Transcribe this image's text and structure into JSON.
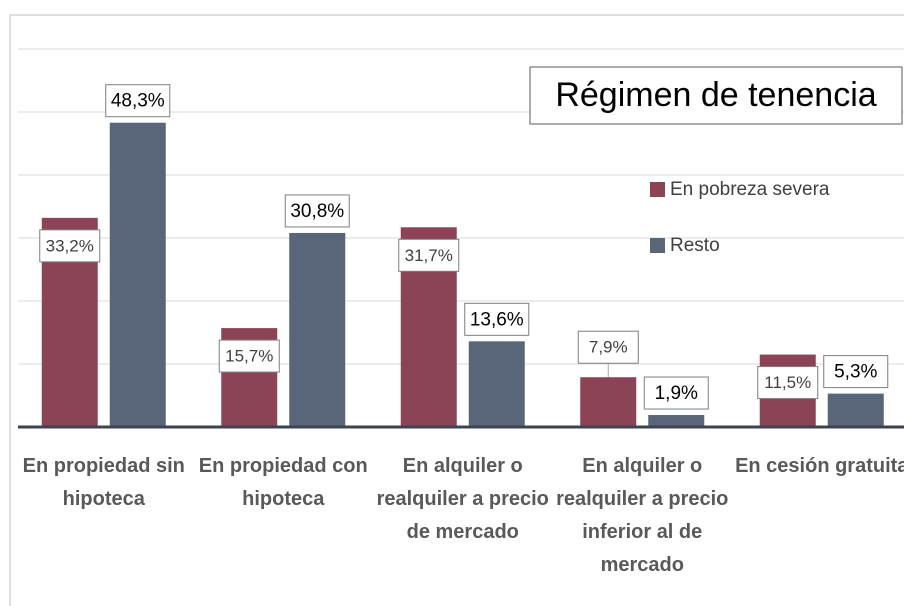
{
  "chart_data": {
    "type": "bar",
    "title": "Régimen de tenencia",
    "categories": [
      "En propiedad sin hipoteca",
      "En propiedad con hipoteca",
      "En alquiler o realquiler a precio de mercado",
      "En alquiler o realquiler a precio inferior al de mercado",
      "En cesión gratuita"
    ],
    "series": [
      {
        "name": "En pobreza severa",
        "color": "#8c4356",
        "values": [
          33.2,
          15.7,
          31.7,
          7.9,
          11.5
        ],
        "value_labels": [
          "33,2%",
          "15,7%",
          "31,7%",
          "7,9%",
          "11,5%"
        ]
      },
      {
        "name": "Resto",
        "color": "#596579",
        "values": [
          48.3,
          30.8,
          13.6,
          1.9,
          5.3
        ],
        "value_labels": [
          "48,3%",
          "30,8%",
          "13,6%",
          "1,9%",
          "5,3%"
        ]
      }
    ],
    "ylim": [
      0,
      60
    ],
    "yticks": [
      0,
      10,
      20,
      30,
      40,
      50,
      60
    ],
    "grid": true
  }
}
